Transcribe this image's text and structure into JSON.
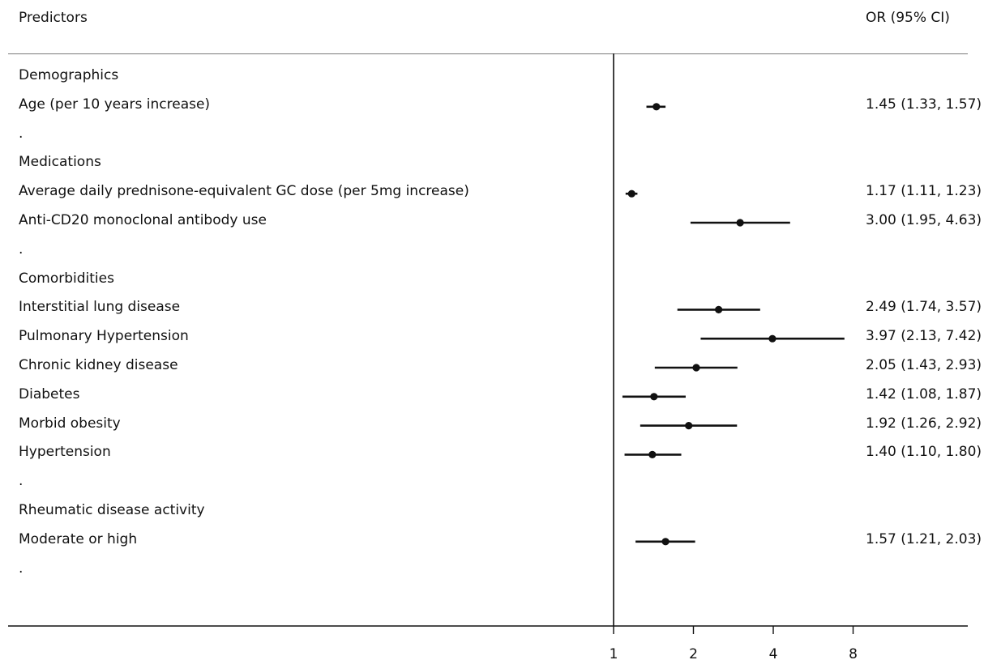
{
  "header": {
    "left": "Predictors",
    "right": "OR (95% CI)"
  },
  "chart_data": {
    "type": "forest",
    "scale": "log2",
    "reference_line": 1,
    "x_ticks": [
      1,
      2,
      4,
      8
    ],
    "x_tick_labels": [
      "1",
      "2",
      "4",
      "8"
    ],
    "rows": [
      {
        "label": "Demographics",
        "kind": "heading"
      },
      {
        "label": "Age (per 10 years increase)",
        "kind": "item",
        "or": 1.45,
        "lo": 1.33,
        "hi": 1.57,
        "text": "1.45 (1.33, 1.57)"
      },
      {
        "label": ".",
        "kind": "spacer"
      },
      {
        "label": "Medications",
        "kind": "heading"
      },
      {
        "label": "Average daily prednisone-equivalent GC dose (per 5mg increase)",
        "kind": "item",
        "or": 1.17,
        "lo": 1.11,
        "hi": 1.23,
        "text": "1.17 (1.11, 1.23)"
      },
      {
        "label": "Anti-CD20 monoclonal antibody use",
        "kind": "item",
        "or": 3.0,
        "lo": 1.95,
        "hi": 4.63,
        "text": "3.00 (1.95, 4.63)"
      },
      {
        "label": ".",
        "kind": "spacer"
      },
      {
        "label": "Comorbidities",
        "kind": "heading"
      },
      {
        "label": "Interstitial lung disease",
        "kind": "item",
        "or": 2.49,
        "lo": 1.74,
        "hi": 3.57,
        "text": "2.49 (1.74, 3.57)"
      },
      {
        "label": "Pulmonary Hypertension",
        "kind": "item",
        "or": 3.97,
        "lo": 2.13,
        "hi": 7.42,
        "text": "3.97 (2.13, 7.42)"
      },
      {
        "label": "Chronic kidney disease",
        "kind": "item",
        "or": 2.05,
        "lo": 1.43,
        "hi": 2.93,
        "text": "2.05 (1.43, 2.93)"
      },
      {
        "label": "Diabetes",
        "kind": "item",
        "or": 1.42,
        "lo": 1.08,
        "hi": 1.87,
        "text": "1.42 (1.08, 1.87)"
      },
      {
        "label": "Morbid obesity",
        "kind": "item",
        "or": 1.92,
        "lo": 1.26,
        "hi": 2.92,
        "text": "1.92 (1.26, 2.92)"
      },
      {
        "label": "Hypertension",
        "kind": "item",
        "or": 1.4,
        "lo": 1.1,
        "hi": 1.8,
        "text": "1.40 (1.10, 1.80)"
      },
      {
        "label": ".",
        "kind": "spacer"
      },
      {
        "label": "Rheumatic disease activity",
        "kind": "heading"
      },
      {
        "label": "Moderate or high",
        "kind": "item",
        "or": 1.57,
        "lo": 1.21,
        "hi": 2.03,
        "text": "1.57 (1.21, 2.03)"
      },
      {
        "label": ".",
        "kind": "spacer"
      }
    ]
  }
}
